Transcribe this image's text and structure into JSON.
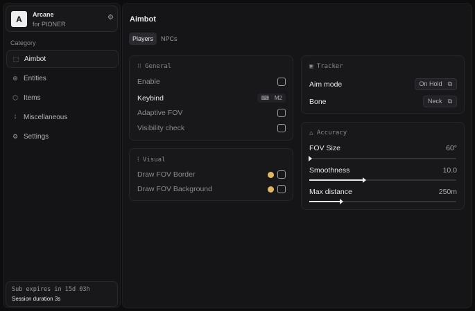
{
  "app": {
    "logo_letter": "A",
    "name": "Arcane",
    "subtitle": "for PIONER"
  },
  "sidebar": {
    "category_label": "Category",
    "items": [
      {
        "label": "Aimbot",
        "icon": "crosshair-icon",
        "active": true
      },
      {
        "label": "Entities",
        "icon": "entities-icon"
      },
      {
        "label": "Items",
        "icon": "box-icon"
      },
      {
        "label": "Miscellaneous",
        "icon": "misc-icon"
      },
      {
        "label": "Settings",
        "icon": "gear-icon"
      }
    ],
    "footer": {
      "sub": "Sub expires in 15d 03h",
      "session": "Session duration 3s"
    }
  },
  "main": {
    "title": "Aimbot",
    "tabs": [
      {
        "label": "Players",
        "active": true
      },
      {
        "label": "NPCs"
      }
    ],
    "general": {
      "title": "General",
      "enable": "Enable",
      "keybind": "Keybind",
      "keybind_value": "M2",
      "adaptive": "Adaptive FOV",
      "visibility": "Visibility check"
    },
    "visual": {
      "title": "Visual",
      "border": "Draw FOV Border",
      "background": "Draw FOV Background",
      "color": "#e0b860"
    },
    "tracker": {
      "title": "Tracker",
      "aim_mode": "Aim mode",
      "aim_mode_value": "On Hold",
      "bone": "Bone",
      "bone_value": "Neck"
    },
    "accuracy": {
      "title": "Accuracy",
      "fov": {
        "label": "FOV Size",
        "value": "60°",
        "fraction": 0.0
      },
      "smooth": {
        "label": "Smoothness",
        "value": "10.0",
        "fraction": 0.37
      },
      "dist": {
        "label": "Max distance",
        "value": "250m",
        "fraction": 0.21
      }
    }
  }
}
